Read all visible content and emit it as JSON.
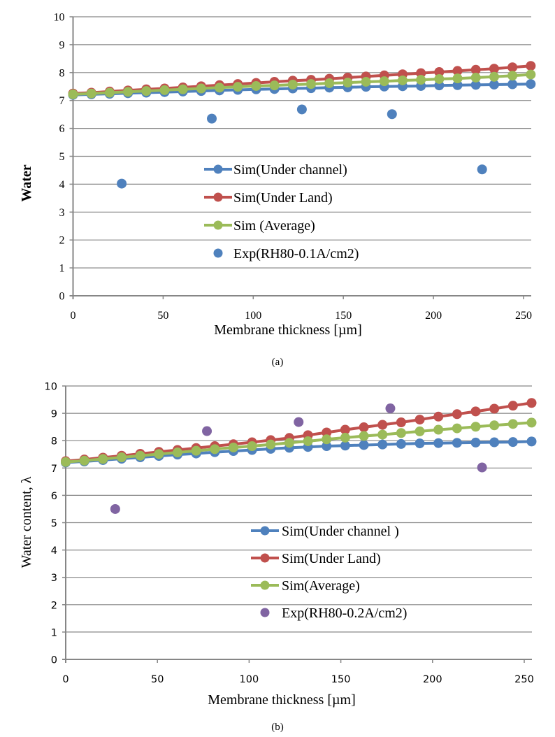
{
  "chart_data": [
    {
      "type": "line",
      "panel": "a",
      "caption": "(a)",
      "title": "",
      "xlabel": "Membrane thickness [µm]",
      "ylabel": "Water",
      "xlim": [
        0,
        250
      ],
      "ylim": [
        0,
        10
      ],
      "xticks": [
        0,
        50,
        100,
        150,
        200,
        250
      ],
      "yticks": [
        0,
        1,
        2,
        3,
        4,
        5,
        6,
        7,
        8,
        9,
        10
      ],
      "grid": true,
      "legend_position": "center",
      "series": [
        {
          "name": "Sim(Under channel)",
          "kind": "line-marker",
          "color": "#4f81bd",
          "x": [
            0,
            10.16,
            20.32,
            30.48,
            40.64,
            50.8,
            60.96,
            71.12,
            81.28,
            91.44,
            101.6,
            111.76,
            121.92,
            132.08,
            142.24,
            152.4,
            162.56,
            172.72,
            182.88,
            193.04,
            203.2,
            213.36,
            223.52,
            233.68,
            243.84,
            254
          ],
          "y": [
            7.2,
            7.22,
            7.24,
            7.26,
            7.28,
            7.3,
            7.32,
            7.34,
            7.36,
            7.38,
            7.4,
            7.41,
            7.43,
            7.44,
            7.46,
            7.47,
            7.49,
            7.5,
            7.51,
            7.52,
            7.54,
            7.55,
            7.56,
            7.57,
            7.58,
            7.59
          ]
        },
        {
          "name": "Sim(Under Land)",
          "kind": "line-marker",
          "color": "#c0504d",
          "x": [
            0,
            10.16,
            20.32,
            30.48,
            40.64,
            50.8,
            60.96,
            71.12,
            81.28,
            91.44,
            101.6,
            111.76,
            121.92,
            132.08,
            142.24,
            152.4,
            162.56,
            172.72,
            182.88,
            193.04,
            203.2,
            213.36,
            223.52,
            233.68,
            243.84,
            254
          ],
          "y": [
            7.25,
            7.28,
            7.32,
            7.36,
            7.4,
            7.43,
            7.47,
            7.51,
            7.55,
            7.59,
            7.63,
            7.67,
            7.71,
            7.74,
            7.78,
            7.82,
            7.86,
            7.9,
            7.94,
            7.98,
            8.02,
            8.06,
            8.1,
            8.14,
            8.19,
            8.24
          ]
        },
        {
          "name": "Sim (Average)",
          "kind": "line-marker",
          "color": "#9bbb59",
          "x": [
            0,
            10.16,
            20.32,
            30.48,
            40.64,
            50.8,
            60.96,
            71.12,
            81.28,
            91.44,
            101.6,
            111.76,
            121.92,
            132.08,
            142.24,
            152.4,
            162.56,
            172.72,
            182.88,
            193.04,
            203.2,
            213.36,
            223.52,
            233.68,
            243.84,
            254
          ],
          "y": [
            7.22,
            7.25,
            7.28,
            7.31,
            7.34,
            7.37,
            7.4,
            7.43,
            7.46,
            7.49,
            7.52,
            7.54,
            7.57,
            7.59,
            7.62,
            7.64,
            7.67,
            7.69,
            7.72,
            7.74,
            7.77,
            7.79,
            7.82,
            7.85,
            7.89,
            7.93
          ]
        },
        {
          "name": "Exp(RH80-0.1A/cm2)",
          "kind": "marker",
          "color": "#4f81bd",
          "x": [
            27,
            77,
            127,
            177,
            227
          ],
          "y": [
            4.02,
            6.35,
            6.68,
            6.51,
            4.53
          ]
        }
      ]
    },
    {
      "type": "line",
      "panel": "b",
      "caption": "(b)",
      "title": "",
      "xlabel": "Membrane thickness [µm]",
      "ylabel": "Water content, λ",
      "xlim": [
        0,
        250
      ],
      "ylim": [
        0,
        10
      ],
      "xticks": [
        0,
        50,
        100,
        150,
        200,
        250
      ],
      "yticks": [
        0,
        1,
        2,
        3,
        4,
        5,
        6,
        7,
        8,
        9,
        10
      ],
      "grid": true,
      "legend_position": "center-right",
      "series": [
        {
          "name": "Sim(Under channel )",
          "kind": "line-marker",
          "color": "#4f81bd",
          "x": [
            0,
            10.16,
            20.32,
            30.48,
            40.64,
            50.8,
            60.96,
            71.12,
            81.28,
            91.44,
            101.6,
            111.76,
            121.92,
            132.08,
            142.24,
            152.4,
            162.56,
            172.72,
            182.88,
            193.04,
            203.2,
            213.36,
            223.52,
            233.68,
            243.84,
            254
          ],
          "y": [
            7.2,
            7.24,
            7.29,
            7.34,
            7.39,
            7.44,
            7.49,
            7.53,
            7.58,
            7.62,
            7.66,
            7.7,
            7.74,
            7.77,
            7.8,
            7.82,
            7.84,
            7.86,
            7.88,
            7.9,
            7.91,
            7.92,
            7.93,
            7.94,
            7.95,
            7.97
          ]
        },
        {
          "name": "Sim(Under Land)",
          "kind": "line-marker",
          "color": "#c0504d",
          "x": [
            0,
            10.16,
            20.32,
            30.48,
            40.64,
            50.8,
            60.96,
            71.12,
            81.28,
            91.44,
            101.6,
            111.76,
            121.92,
            132.08,
            142.24,
            152.4,
            162.56,
            172.72,
            182.88,
            193.04,
            203.2,
            213.36,
            223.52,
            233.68,
            243.84,
            254
          ],
          "y": [
            7.25,
            7.31,
            7.38,
            7.45,
            7.52,
            7.59,
            7.66,
            7.73,
            7.8,
            7.87,
            7.94,
            8.02,
            8.1,
            8.2,
            8.3,
            8.4,
            8.49,
            8.58,
            8.67,
            8.77,
            8.88,
            8.97,
            9.07,
            9.17,
            9.28,
            9.38
          ]
        },
        {
          "name": "Sim(Average)",
          "kind": "line-marker",
          "color": "#9bbb59",
          "x": [
            0,
            10.16,
            20.32,
            30.48,
            40.64,
            50.8,
            60.96,
            71.12,
            81.28,
            91.44,
            101.6,
            111.76,
            121.92,
            132.08,
            142.24,
            152.4,
            162.56,
            172.72,
            182.88,
            193.04,
            203.2,
            213.36,
            223.52,
            233.68,
            243.84,
            254
          ],
          "y": [
            7.22,
            7.27,
            7.33,
            7.39,
            7.45,
            7.51,
            7.57,
            7.63,
            7.69,
            7.75,
            7.8,
            7.86,
            7.92,
            7.98,
            8.05,
            8.11,
            8.17,
            8.22,
            8.28,
            8.34,
            8.4,
            8.45,
            8.51,
            8.56,
            8.61,
            8.66
          ]
        },
        {
          "name": "Exp(RH80-0.2A/cm2)",
          "kind": "marker",
          "color": "#8064a2",
          "x": [
            27,
            77,
            127,
            177,
            227
          ],
          "y": [
            5.5,
            8.35,
            8.68,
            9.18,
            7.02
          ]
        }
      ]
    }
  ]
}
